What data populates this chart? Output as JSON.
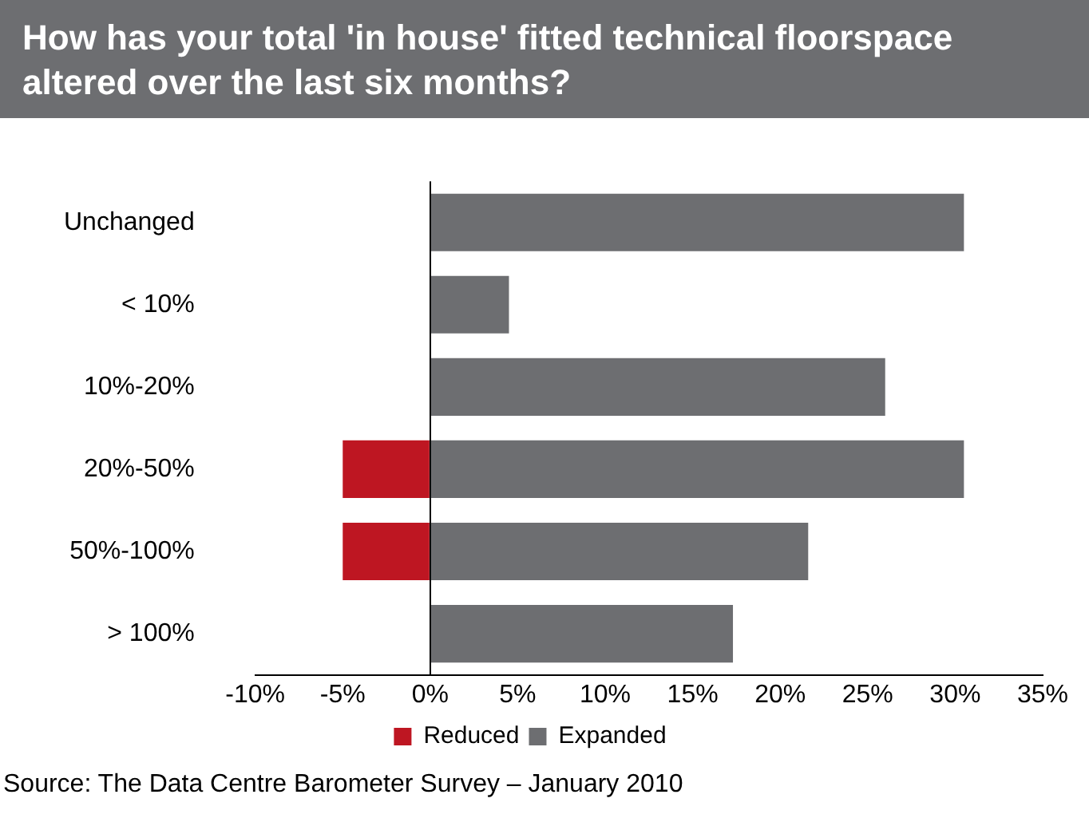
{
  "chart_data": {
    "type": "bar",
    "orientation": "horizontal",
    "stacked": true,
    "title": "How has your total 'in house' fitted technical floorspace altered over the last six months?",
    "categories": [
      "Unchanged",
      "< 10%",
      "10%-20%",
      "20%-50%",
      "50%-100%",
      "> 100%"
    ],
    "series": [
      {
        "name": "Reduced",
        "color": "#be1622",
        "values": [
          null,
          null,
          null,
          -5,
          -5,
          null
        ]
      },
      {
        "name": "Expanded",
        "color": "#6d6e71",
        "values": [
          30.5,
          4.5,
          26,
          30.5,
          21.6,
          17.3
        ]
      }
    ],
    "xlim": [
      -10,
      35
    ],
    "xticks": [
      {
        "value": -10,
        "label": "-10%"
      },
      {
        "value": -5,
        "label": "-5%"
      },
      {
        "value": 0,
        "label": "0%"
      },
      {
        "value": 5,
        "label": "5%"
      },
      {
        "value": 10,
        "label": "10%"
      },
      {
        "value": 15,
        "label": "15%"
      },
      {
        "value": 20,
        "label": "20%"
      },
      {
        "value": 25,
        "label": "25%"
      },
      {
        "value": 30,
        "label": "30%"
      },
      {
        "value": 35,
        "label": "35%"
      }
    ],
    "legend": "bottom",
    "annotations": [
      "Source: The Data Centre Barometer Survey – January 2010"
    ]
  }
}
